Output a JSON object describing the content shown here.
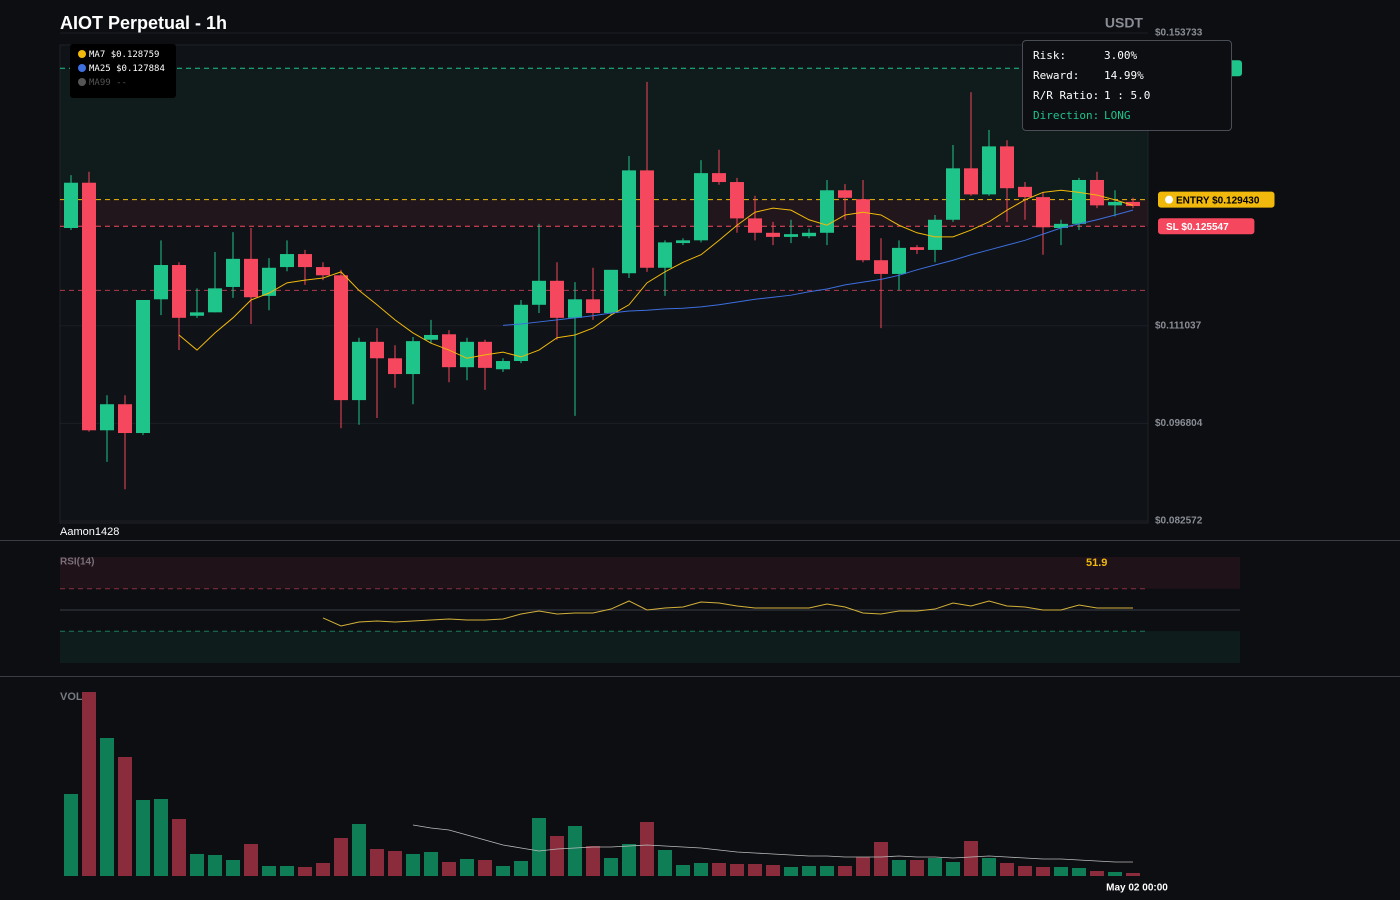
{
  "chart_data": [
    {
      "type": "candlestick",
      "title": "AIOT Perpetual - 1h",
      "currency": "USDT",
      "watermark": "Aamon1428",
      "up_color": "#1ec48a",
      "down_color": "#f5475e",
      "open": [
        0.1253,
        0.1319,
        0.0958,
        0.0996,
        0.0954,
        0.1149,
        0.1199,
        0.1125,
        0.113,
        0.1167,
        0.1208,
        0.1154,
        0.1196,
        0.1215,
        0.1196,
        0.1184,
        0.1002,
        0.1087,
        0.1063,
        0.104,
        0.109,
        0.1098,
        0.105,
        0.1087,
        0.1047,
        0.1059,
        0.1141,
        0.1176,
        0.1122,
        0.1149,
        0.1129,
        0.1187,
        0.1337,
        0.1195,
        0.1231,
        0.1235,
        0.1333,
        0.132,
        0.1267,
        0.1246,
        0.124,
        0.1241,
        0.1246,
        0.1308,
        0.1295,
        0.1206,
        0.1186,
        0.1225,
        0.1221,
        0.1265,
        0.134,
        0.1302,
        0.1372,
        0.1313,
        0.1298,
        0.1253,
        0.1259,
        0.1323,
        0.1286,
        0.1291
      ],
      "high": [
        0.133,
        0.1335,
        0.1009,
        0.1009,
        0.1148,
        0.1235,
        0.1203,
        0.1165,
        0.1218,
        0.1247,
        0.1253,
        0.1209,
        0.1235,
        0.1221,
        0.1203,
        0.1192,
        0.1093,
        0.1107,
        0.1082,
        0.1094,
        0.1119,
        0.1104,
        0.1093,
        0.109,
        0.1063,
        0.1148,
        0.1259,
        0.1203,
        0.1174,
        0.1195,
        0.1192,
        0.1358,
        0.1466,
        0.1235,
        0.1238,
        0.1352,
        0.1367,
        0.1326,
        0.13,
        0.1262,
        0.1265,
        0.1252,
        0.1323,
        0.1317,
        0.1323,
        0.1238,
        0.1235,
        0.1228,
        0.1272,
        0.1374,
        0.1451,
        0.1396,
        0.1381,
        0.132,
        0.1305,
        0.1265,
        0.1326,
        0.1335,
        0.1308,
        0.1297
      ],
      "low": [
        0.125,
        0.0956,
        0.0912,
        0.0872,
        0.0951,
        0.1126,
        0.1075,
        0.1122,
        0.113,
        0.1151,
        0.1113,
        0.1133,
        0.119,
        0.117,
        0.1177,
        0.0961,
        0.0966,
        0.0976,
        0.102,
        0.0996,
        0.1085,
        0.1028,
        0.1031,
        0.1017,
        0.1043,
        0.1056,
        0.1129,
        0.109,
        0.0979,
        0.1119,
        0.1126,
        0.118,
        0.1189,
        0.1154,
        0.1228,
        0.1232,
        0.1316,
        0.1246,
        0.1235,
        0.1228,
        0.1231,
        0.1238,
        0.1228,
        0.1265,
        0.1203,
        0.1107,
        0.1162,
        0.1215,
        0.1203,
        0.1262,
        0.13,
        0.13,
        0.1262,
        0.1265,
        0.1214,
        0.1228,
        0.125,
        0.1282,
        0.127,
        0.1282
      ],
      "close": [
        0.1319,
        0.0958,
        0.0996,
        0.0954,
        0.1148,
        0.1199,
        0.1122,
        0.113,
        0.1165,
        0.1208,
        0.1152,
        0.1195,
        0.1215,
        0.1196,
        0.1184,
        0.1002,
        0.1087,
        0.1063,
        0.104,
        0.1088,
        0.1097,
        0.105,
        0.1087,
        0.1049,
        0.1059,
        0.1141,
        0.1176,
        0.1122,
        0.1149,
        0.1129,
        0.1192,
        0.1337,
        0.1195,
        0.1232,
        0.1235,
        0.1333,
        0.132,
        0.1267,
        0.1246,
        0.124,
        0.1244,
        0.1246,
        0.1308,
        0.1297,
        0.1206,
        0.1186,
        0.1224,
        0.1221,
        0.1265,
        0.134,
        0.1302,
        0.1372,
        0.1311,
        0.1298,
        0.1254,
        0.1259,
        0.1323,
        0.1286,
        0.1291,
        0.1285
      ],
      "ylim": [
        0.082572,
        0.153733
      ],
      "yticks": [
        {
          "value": 0.153733,
          "label": "$0.153733"
        },
        {
          "value": 0.111037,
          "label": "$0.111037"
        },
        {
          "value": 0.096804,
          "label": "$0.096804"
        },
        {
          "value": 0.082572,
          "label": "$0.082572"
        }
      ],
      "grid": true,
      "series": [
        {
          "name": "MA7",
          "color": "#f0b90b",
          "current": "$0.128759",
          "values": [
            null,
            null,
            null,
            null,
            null,
            null,
            0.1097,
            0.1075,
            0.11,
            0.1122,
            0.1148,
            0.1158,
            0.1173,
            0.1177,
            0.118,
            0.1189,
            0.1162,
            0.1141,
            0.1119,
            0.11,
            0.1085,
            0.1075,
            0.1063,
            0.1068,
            0.1072,
            0.1065,
            0.1075,
            0.1093,
            0.1097,
            0.1107,
            0.1126,
            0.1141,
            0.1173,
            0.1189,
            0.1203,
            0.1214,
            0.1235,
            0.1257,
            0.1276,
            0.1282,
            0.1279,
            0.1265,
            0.1257,
            0.1272,
            0.1276,
            0.1272,
            0.1257,
            0.1246,
            0.124,
            0.124,
            0.125,
            0.1262,
            0.1279,
            0.1294,
            0.1305,
            0.1308,
            0.1305,
            0.1301,
            0.1294,
            0.1286
          ]
        },
        {
          "name": "MA25",
          "color": "#3d6fe0",
          "current": "$0.127884",
          "values": [
            null,
            null,
            null,
            null,
            null,
            null,
            null,
            null,
            null,
            null,
            null,
            null,
            null,
            null,
            null,
            null,
            null,
            null,
            null,
            null,
            null,
            null,
            null,
            null,
            0.1111,
            0.1113,
            0.1116,
            0.1119,
            0.1122,
            0.1125,
            0.1129,
            0.1132,
            0.1133,
            0.1135,
            0.1136,
            0.1138,
            0.1141,
            0.1145,
            0.1149,
            0.1152,
            0.1155,
            0.116,
            0.1164,
            0.117,
            0.1174,
            0.1178,
            0.1184,
            0.1192,
            0.1199,
            0.1206,
            0.1214,
            0.1221,
            0.1228,
            0.1235,
            0.1244,
            0.1253,
            0.1259,
            0.1265,
            0.1272,
            0.1279
          ]
        },
        {
          "name": "MA99",
          "color": "#555555",
          "current": "--"
        }
      ],
      "levels": [
        {
          "value": 0.1486,
          "color": "#1ec48a"
        },
        {
          "value": 0.12943,
          "color": "#f0b90b",
          "label": "ENTRY $0.129430"
        },
        {
          "value": 0.125547,
          "color": "#f5475e",
          "label": "SL $0.125547"
        },
        {
          "value": 0.1162,
          "color": "#b03a4a"
        }
      ]
    },
    {
      "type": "line",
      "title": "RSI(14)",
      "ylim": [
        0,
        100
      ],
      "levels": [
        {
          "value": 70,
          "color": "#8a3040",
          "dashed": true
        },
        {
          "value": 50,
          "color": "#3a3d45",
          "dashed": false
        },
        {
          "value": 30,
          "color": "#1b7a58",
          "dashed": true
        }
      ],
      "series": [
        {
          "color": "#d4b13a",
          "values": [
            null,
            null,
            null,
            null,
            null,
            null,
            null,
            null,
            null,
            null,
            null,
            null,
            null,
            null,
            42.5,
            34.9,
            38.7,
            39.6,
            38.7,
            39.6,
            40.6,
            41.5,
            40.6,
            40.6,
            41.5,
            46.2,
            49.1,
            46.2,
            47.2,
            47.2,
            50.9,
            58.5,
            50,
            51.9,
            52.8,
            57.5,
            56.6,
            53.8,
            51.9,
            51.9,
            51.9,
            51.9,
            55.7,
            52.8,
            47.2,
            46.2,
            49.1,
            49.1,
            50.9,
            56.6,
            53.8,
            58.5,
            53.8,
            52.8,
            50,
            50,
            54.7,
            51.9,
            51.9,
            51.9
          ]
        }
      ]
    },
    {
      "type": "bar",
      "title": "VOL",
      "up_color": "#0f7e56",
      "down_color": "#8a2c3b",
      "categories": [
        null,
        null,
        null,
        null,
        null,
        null,
        null,
        null,
        null,
        null,
        null,
        null,
        null,
        null,
        null,
        null,
        null,
        null,
        null,
        null,
        null,
        null,
        null,
        null,
        null,
        null,
        null,
        null,
        null,
        null,
        null,
        null,
        null,
        null,
        null,
        null,
        null,
        null,
        null,
        null,
        null,
        null,
        null,
        null,
        null,
        null,
        null,
        null,
        null,
        null,
        null,
        null,
        null,
        null,
        null,
        null,
        null,
        null,
        null,
        "May 02 00:00"
      ],
      "values": [
        82,
        184,
        138,
        119,
        76,
        77,
        57,
        22,
        21,
        16,
        32,
        10,
        10,
        9,
        13,
        38,
        52,
        27,
        25,
        22,
        24,
        14,
        17,
        16,
        10,
        15,
        58,
        40,
        50,
        30,
        18,
        32,
        54,
        26,
        11,
        13,
        13,
        12,
        12,
        11,
        9,
        10,
        10,
        10,
        19,
        34,
        16,
        16,
        18,
        14,
        35,
        18,
        13,
        10,
        9,
        9,
        8,
        5,
        4,
        3
      ],
      "series": [
        {
          "color": "#bbbbbb",
          "values": [
            null,
            null,
            null,
            null,
            null,
            null,
            null,
            null,
            null,
            null,
            null,
            null,
            null,
            null,
            null,
            null,
            null,
            null,
            null,
            51,
            48,
            46,
            41,
            36,
            31,
            28,
            25,
            27,
            28,
            29,
            29,
            30,
            31,
            30,
            29,
            28,
            26,
            24,
            23,
            22,
            21,
            20,
            20,
            19,
            19,
            19,
            20,
            19,
            19,
            18,
            19,
            20,
            19,
            18,
            17,
            17,
            16,
            15,
            14,
            14
          ]
        }
      ]
    }
  ],
  "risk_panel": {
    "rows": [
      {
        "label": "Risk:",
        "value": "3.00%"
      },
      {
        "label": "Reward:",
        "value": "14.99%"
      },
      {
        "label": "R/R Ratio:",
        "value": "1 : 5.0"
      },
      {
        "label": "Direction:",
        "value": "LONG"
      }
    ]
  }
}
